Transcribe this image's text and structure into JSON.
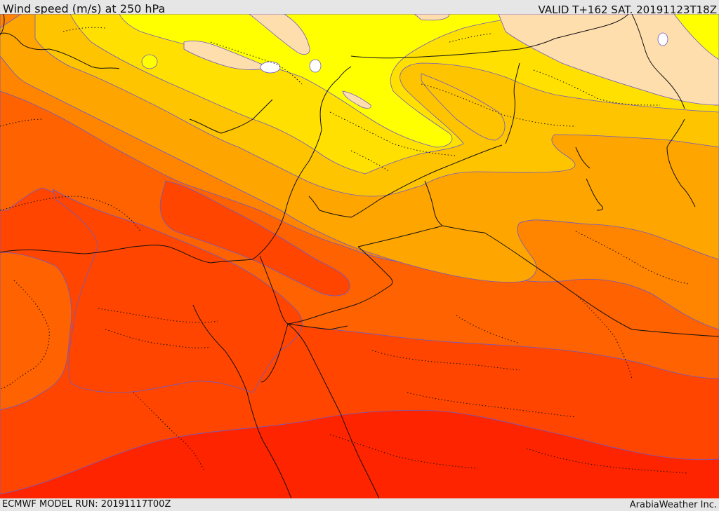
{
  "header": {
    "title": "Wind speed (m/s) at 250 hPa",
    "valid_time": "VALID T+162 SAT. 20191123T18Z"
  },
  "footer": {
    "model_run": "ECMWF MODEL RUN: 20191117T00Z",
    "credit": "ArabiaWeather Inc."
  },
  "map": {
    "palette": [
      "#ffffff",
      "#ffdead",
      "#ffff00",
      "#ffe000",
      "#ffc400",
      "#ffa500",
      "#ff8400",
      "#ff6200",
      "#ff4500",
      "#ff2400"
    ],
    "contour_color": "#6a5acd"
  }
}
